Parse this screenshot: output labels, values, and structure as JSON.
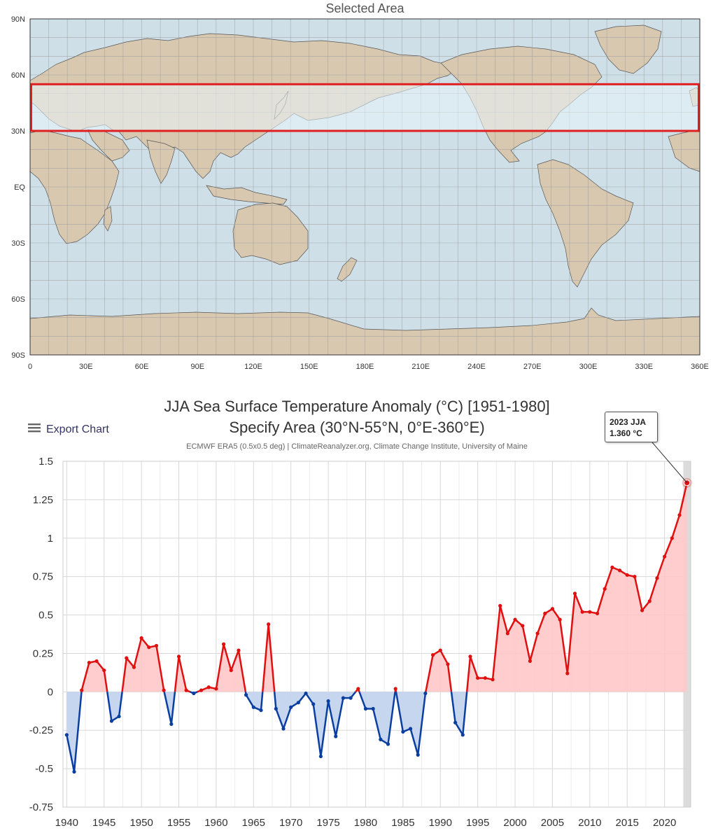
{
  "map": {
    "title": "Selected Area",
    "lat_labels": [
      "90N",
      "60N",
      "30N",
      "EQ",
      "30S",
      "60S",
      "90S"
    ],
    "lon_labels": [
      "0",
      "30E",
      "60E",
      "90E",
      "120E",
      "150E",
      "180E",
      "210E",
      "240E",
      "270E",
      "300E",
      "330E",
      "360E"
    ],
    "selection": {
      "lat_min": 30,
      "lat_max": 55,
      "lon_min": 0,
      "lon_max": 360
    },
    "colors": {
      "ocean": "#cfdfe8",
      "land": "#d8c8b0",
      "grid": "#ffffff",
      "selection_border": "#e02020",
      "selection_fill": "#eaf6fc"
    }
  },
  "chart": {
    "title_line1": "JJA Sea Surface Temperature Anomaly (°C) [1951-1980]",
    "title_line2": "Specify Area (30°N-55°N, 0°E-360°E)",
    "subtitle": "ECMWF ERA5 (0.5x0.5 deg) | ClimateReanalyzer.org, Climate Change Institute, University of Maine",
    "export_label": "Export Chart",
    "tooltip_line1": "2023 JJA",
    "tooltip_line2": "1.360 °C",
    "colors": {
      "positive_line": "#e01010",
      "positive_fill": "#ffc8c8",
      "negative_line": "#0a3fa0",
      "negative_fill": "#c4d4ee",
      "highlight_band": "#dcdcdc"
    }
  },
  "chart_data": {
    "type": "area",
    "title": "JJA Sea Surface Temperature Anomaly (°C) [1951-1980]",
    "subtitle": "Specify Area (30°N-55°N, 0°E-360°E)",
    "xlabel": "",
    "ylabel": "",
    "xlim": [
      1940,
      2023
    ],
    "ylim": [
      -0.75,
      1.5
    ],
    "x_ticks": [
      1940,
      1945,
      1950,
      1955,
      1960,
      1965,
      1970,
      1975,
      1980,
      1985,
      1990,
      1995,
      2000,
      2005,
      2010,
      2015,
      2020
    ],
    "y_ticks": [
      1.5,
      1.25,
      1,
      0.75,
      0.5,
      0.25,
      0,
      -0.25,
      -0.5,
      -0.75
    ],
    "y_tick_labels": [
      "1.5",
      "1.25",
      "1",
      "0.75",
      "0.5",
      "0.25",
      "0",
      "-0.25",
      "-0.5",
      "-0.75"
    ],
    "grid": true,
    "highlight": {
      "x": 2023,
      "y": 1.36,
      "label": "2023 JJA",
      "value_label": "1.360 °C"
    },
    "series": [
      {
        "x": [
          1940,
          1941,
          1942,
          1943,
          1944,
          1945,
          1946,
          1947,
          1948,
          1949,
          1950,
          1951,
          1952,
          1953,
          1954,
          1955,
          1956,
          1957,
          1958,
          1959,
          1960,
          1961,
          1962,
          1963,
          1964,
          1965,
          1966,
          1967,
          1968,
          1969,
          1970,
          1971,
          1972,
          1973,
          1974,
          1975,
          1976,
          1977,
          1978,
          1979,
          1980,
          1981,
          1982,
          1983,
          1984,
          1985,
          1986,
          1987,
          1988,
          1989,
          1990,
          1991,
          1992,
          1993,
          1994,
          1995,
          1996,
          1997,
          1998,
          1999,
          2000,
          2001,
          2002,
          2003,
          2004,
          2005,
          2006,
          2007,
          2008,
          2009,
          2010,
          2011,
          2012,
          2013,
          2014,
          2015,
          2016,
          2017,
          2018,
          2019,
          2020,
          2021,
          2022,
          2023
        ],
        "values": [
          -0.28,
          -0.52,
          0.01,
          0.19,
          0.2,
          0.14,
          -0.19,
          -0.16,
          0.22,
          0.16,
          0.35,
          0.29,
          0.3,
          0.01,
          -0.21,
          0.23,
          0.01,
          -0.01,
          0.01,
          0.03,
          0.02,
          0.31,
          0.14,
          0.27,
          -0.02,
          -0.1,
          -0.12,
          0.44,
          -0.11,
          -0.24,
          -0.1,
          -0.07,
          -0.01,
          -0.08,
          -0.42,
          -0.06,
          -0.29,
          -0.04,
          -0.04,
          0.02,
          -0.11,
          -0.11,
          -0.31,
          -0.34,
          0.02,
          -0.26,
          -0.24,
          -0.41,
          -0.01,
          0.24,
          0.27,
          0.18,
          -0.2,
          -0.28,
          0.23,
          0.09,
          0.09,
          0.08,
          0.56,
          0.38,
          0.47,
          0.43,
          0.2,
          0.38,
          0.51,
          0.54,
          0.47,
          0.12,
          0.64,
          0.52,
          0.52,
          0.51,
          0.67,
          0.81,
          0.79,
          0.76,
          0.75,
          0.53,
          0.59,
          0.74,
          0.88,
          1.0,
          1.15,
          1.36
        ]
      }
    ]
  }
}
